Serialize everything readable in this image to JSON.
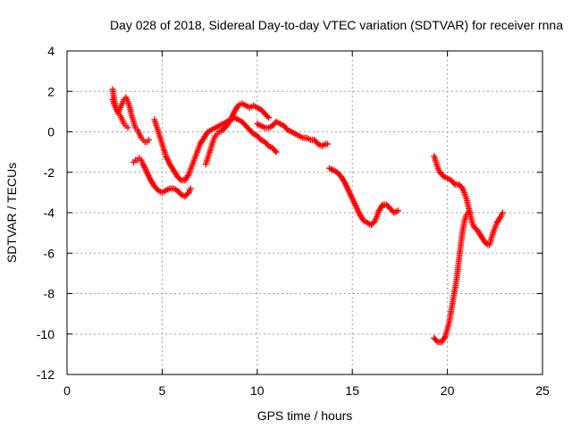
{
  "chart_data": {
    "type": "scatter",
    "title": "Day 028 of 2018, Sidereal Day-to-day VTEC variation (SDTVAR) for receiver rnna",
    "xlabel": "GPS time / hours",
    "ylabel": "SDTVAR / TECUs",
    "xlim": [
      0,
      25
    ],
    "ylim": [
      -12,
      4
    ],
    "xticks": [
      0,
      5,
      10,
      15,
      20,
      25
    ],
    "yticks": [
      -12,
      -10,
      -8,
      -6,
      -4,
      -2,
      0,
      2,
      4
    ],
    "grid": true,
    "legend": "none",
    "marker": "plus",
    "color": "#ff0000",
    "series": [
      {
        "x": [
          2.4,
          2.5,
          2.6,
          2.7,
          2.8,
          2.9,
          3.0,
          3.1,
          3.2
        ],
        "y": [
          2.1,
          1.5,
          1.1,
          0.9,
          0.8,
          0.6,
          0.4,
          0.3,
          0.2
        ]
      },
      {
        "x": [
          2.4,
          2.5,
          2.6,
          2.7,
          2.8,
          2.9,
          3.0,
          3.1,
          3.2,
          3.3,
          3.4,
          3.5,
          3.6,
          3.7,
          3.8,
          3.9,
          4.0,
          4.1,
          4.2,
          4.3
        ],
        "y": [
          1.6,
          1.3,
          1.1,
          1.0,
          1.2,
          1.4,
          1.6,
          1.7,
          1.5,
          1.2,
          0.8,
          0.5,
          0.2,
          0.1,
          -0.1,
          -0.3,
          -0.4,
          -0.5,
          -0.5,
          -0.4
        ]
      },
      {
        "x": [
          3.5,
          3.6,
          3.7,
          3.8,
          3.9,
          4.0,
          4.2,
          4.4,
          4.6,
          4.8,
          5.0,
          5.2,
          5.4,
          5.6,
          5.8,
          6.0,
          6.2,
          6.4,
          6.5
        ],
        "y": [
          -1.5,
          -1.4,
          -1.4,
          -1.3,
          -1.4,
          -1.6,
          -2.0,
          -2.4,
          -2.7,
          -2.9,
          -3.0,
          -2.9,
          -2.8,
          -2.8,
          -2.9,
          -3.1,
          -3.2,
          -3.0,
          -2.8
        ]
      },
      {
        "x": [
          4.6,
          4.7,
          4.8,
          4.9,
          5.0,
          5.1,
          5.2,
          5.4,
          5.6,
          5.8,
          6.0,
          6.2,
          6.4,
          6.6,
          6.8,
          7.0,
          7.2,
          7.4,
          7.6,
          7.8,
          8.0,
          8.2,
          8.4,
          8.6,
          8.8,
          9.0,
          9.2,
          9.4,
          9.6,
          9.8,
          10.0,
          10.2,
          10.4,
          10.6,
          10.8,
          11.0
        ],
        "y": [
          0.6,
          0.3,
          0.0,
          -0.3,
          -0.6,
          -0.9,
          -1.2,
          -1.6,
          -1.9,
          -2.2,
          -2.4,
          -2.4,
          -2.1,
          -1.6,
          -1.1,
          -0.6,
          -0.3,
          0.0,
          0.1,
          0.2,
          0.3,
          0.4,
          0.5,
          0.6,
          0.7,
          0.6,
          0.5,
          0.3,
          0.1,
          -0.1,
          -0.2,
          -0.4,
          -0.5,
          -0.7,
          -0.8,
          -1.0
        ]
      },
      {
        "x": [
          7.3,
          7.4,
          7.5,
          7.6,
          7.7,
          7.8,
          7.9,
          8.0,
          8.2,
          8.4,
          8.6,
          8.8,
          9.0,
          9.2,
          9.4,
          9.6,
          9.8,
          10.0,
          10.2,
          10.4,
          10.6
        ],
        "y": [
          -1.6,
          -1.3,
          -1.0,
          -0.7,
          -0.4,
          -0.2,
          -0.1,
          0.0,
          0.1,
          0.3,
          0.6,
          1.0,
          1.3,
          1.4,
          1.3,
          1.2,
          1.3,
          1.2,
          1.1,
          0.9,
          0.7
        ]
      },
      {
        "x": [
          10.0,
          10.2,
          10.4,
          10.6,
          10.8,
          11.0,
          11.2,
          11.4,
          11.6,
          11.8,
          12.0,
          12.2,
          12.4,
          12.6,
          12.8,
          13.0,
          13.2,
          13.4,
          13.6,
          13.7
        ],
        "y": [
          0.4,
          0.3,
          0.2,
          0.2,
          0.3,
          0.5,
          0.4,
          0.3,
          0.1,
          0.0,
          -0.1,
          -0.2,
          -0.3,
          -0.3,
          -0.4,
          -0.4,
          -0.6,
          -0.7,
          -0.6,
          -0.6
        ]
      },
      {
        "x": [
          13.8,
          14.0,
          14.2,
          14.4,
          14.6,
          14.8,
          15.0,
          15.2,
          15.4,
          15.6,
          15.8,
          16.0,
          16.2,
          16.4,
          16.6,
          16.8,
          17.0,
          17.2,
          17.4
        ],
        "y": [
          -1.8,
          -1.9,
          -2.0,
          -2.2,
          -2.5,
          -2.9,
          -3.3,
          -3.7,
          -4.1,
          -4.4,
          -4.5,
          -4.6,
          -4.4,
          -3.9,
          -3.6,
          -3.6,
          -3.8,
          -4.0,
          -3.9
        ]
      },
      {
        "x": [
          19.3,
          19.4,
          19.5,
          19.6,
          19.8,
          20.0,
          20.2,
          20.4,
          20.6,
          20.8,
          21.0,
          21.1,
          21.2,
          21.3,
          21.4,
          21.6,
          21.8,
          22.0,
          22.2,
          22.4,
          22.6,
          22.8,
          22.9
        ],
        "y": [
          -1.2,
          -1.5,
          -1.8,
          -2.0,
          -2.2,
          -2.3,
          -2.4,
          -2.6,
          -2.6,
          -2.8,
          -3.3,
          -3.7,
          -4.1,
          -4.5,
          -4.7,
          -4.9,
          -5.2,
          -5.5,
          -5.6,
          -5.0,
          -4.5,
          -4.2,
          -4.0
        ]
      },
      {
        "x": [
          19.3,
          19.5,
          19.7,
          19.9,
          20.1,
          20.3,
          20.5,
          20.6,
          20.7,
          20.8,
          20.9,
          21.0,
          21.1,
          21.2
        ],
        "y": [
          -10.2,
          -10.4,
          -10.4,
          -10.1,
          -9.4,
          -8.3,
          -7.2,
          -6.4,
          -5.6,
          -4.9,
          -4.4,
          -4.1,
          -4.0,
          -4.0
        ]
      }
    ]
  }
}
